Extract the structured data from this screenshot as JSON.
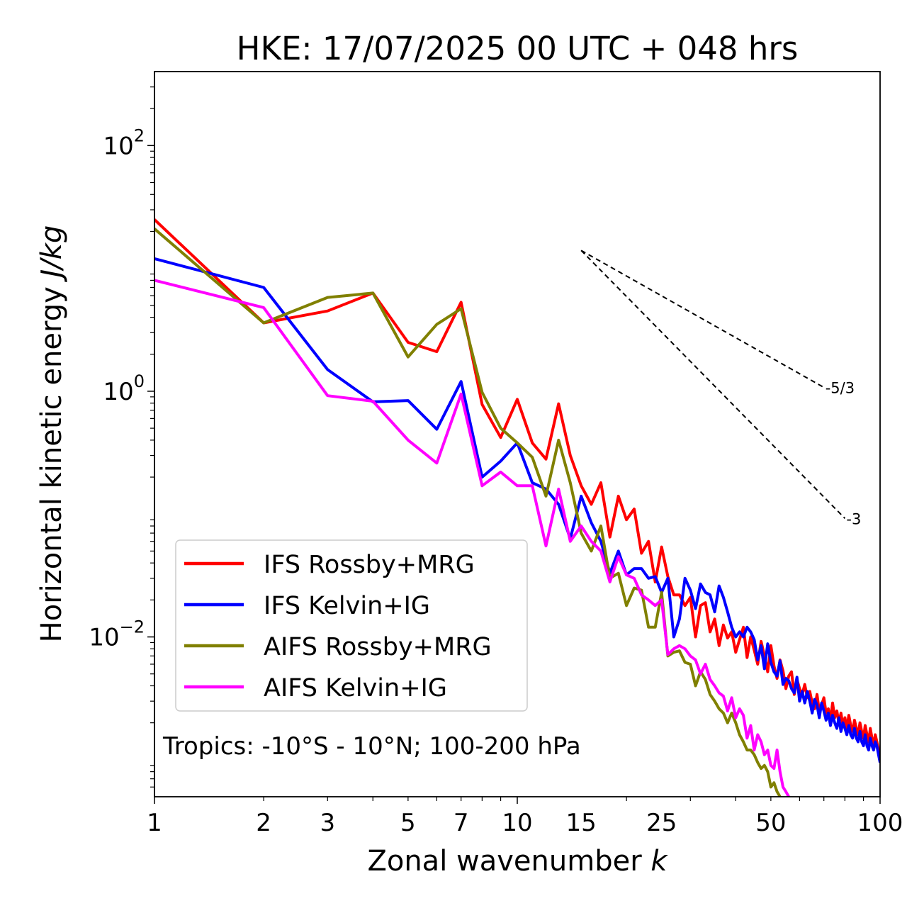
{
  "chart_data": {
    "type": "line",
    "title": "HKE: 17/07/2025 00 UTC + 048 hrs",
    "xlabel": "Zonal wavenumber ",
    "xlabel_italic": "k",
    "ylabel": "Horizontal kinetic energy ",
    "ylabel_italic": "J/kg",
    "xscale": "log",
    "yscale": "log",
    "xlim": [
      1,
      100
    ],
    "ylim": [
      0.0005,
      400
    ],
    "xticks": [
      1,
      2,
      3,
      5,
      7,
      10,
      15,
      25,
      50,
      100
    ],
    "xtick_labels": [
      "1",
      "2",
      "3",
      "5",
      "7",
      "10",
      "15",
      "25",
      "50",
      "100"
    ],
    "yticks": [
      0.01,
      1,
      100
    ],
    "ytick_labels": [
      {
        "base": "10",
        "exp": "−2"
      },
      {
        "base": "10",
        "exp": "0"
      },
      {
        "base": "10",
        "exp": "2"
      }
    ],
    "grid": false,
    "legend_position": "lower-left",
    "annotation": "Tropics: -10°S - 10°N; 100-200 hPa",
    "reference_lines": [
      {
        "label": "-5/3",
        "slope": -1.6667,
        "x_start": 15,
        "y_start": 14,
        "x_end": 70
      },
      {
        "label": "-3",
        "slope": -3,
        "x_start": 15,
        "y_start": 14,
        "x_end": 80
      }
    ],
    "series": [
      {
        "name": "IFS Rossby+MRG",
        "color": "#ff0000",
        "x": [
          1,
          2,
          3,
          4,
          5,
          6,
          7,
          8,
          9,
          10,
          11,
          12,
          13,
          14,
          15,
          16,
          17,
          18,
          19,
          20,
          21,
          22,
          23,
          24,
          25,
          26,
          27,
          28,
          29,
          30,
          31,
          32,
          33,
          34,
          35,
          36,
          37,
          38,
          39,
          40,
          41,
          42,
          43,
          44,
          45,
          46,
          47,
          48,
          49,
          50,
          51,
          52,
          53,
          54,
          55,
          56,
          57,
          58,
          59,
          60,
          61,
          62,
          63,
          64,
          65,
          66,
          67,
          68,
          69,
          70,
          71,
          72,
          73,
          74,
          75,
          76,
          77,
          78,
          79,
          80,
          81,
          82,
          83,
          84,
          85,
          86,
          87,
          88,
          89,
          90,
          91,
          92,
          93,
          94,
          95,
          96,
          97,
          98,
          99,
          100
        ],
        "y": [
          25,
          3.6,
          4.5,
          6.3,
          2.5,
          2.1,
          5.3,
          0.78,
          0.42,
          0.86,
          0.38,
          0.28,
          0.79,
          0.3,
          0.17,
          0.12,
          0.18,
          0.065,
          0.14,
          0.09,
          0.11,
          0.048,
          0.06,
          0.028,
          0.054,
          0.031,
          0.022,
          0.022,
          0.018,
          0.021,
          0.01,
          0.018,
          0.019,
          0.011,
          0.014,
          0.0085,
          0.0125,
          0.0098,
          0.011,
          0.0075,
          0.0095,
          0.012,
          0.0068,
          0.01,
          0.0078,
          0.006,
          0.0092,
          0.007,
          0.0052,
          0.0085,
          0.0058,
          0.0046,
          0.0065,
          0.0053,
          0.0038,
          0.0048,
          0.0052,
          0.0034,
          0.0045,
          0.0038,
          0.0034,
          0.0041,
          0.0032,
          0.0036,
          0.0029,
          0.0026,
          0.0034,
          0.0025,
          0.0028,
          0.0032,
          0.0024,
          0.0026,
          0.0021,
          0.0029,
          0.0022,
          0.0025,
          0.002,
          0.0024,
          0.0019,
          0.0022,
          0.0018,
          0.0023,
          0.0019,
          0.0017,
          0.0021,
          0.0018,
          0.0016,
          0.002,
          0.0017,
          0.0015,
          0.0019,
          0.0016,
          0.0014,
          0.0018,
          0.0015,
          0.0013,
          0.0016,
          0.0014,
          0.0012,
          0.0011
        ]
      },
      {
        "name": "IFS Kelvin+IG",
        "color": "#0000ff",
        "x": [
          1,
          2,
          3,
          4,
          5,
          6,
          7,
          8,
          9,
          10,
          11,
          12,
          13,
          14,
          15,
          16,
          17,
          18,
          19,
          20,
          21,
          22,
          23,
          24,
          25,
          26,
          27,
          28,
          29,
          30,
          31,
          32,
          33,
          34,
          35,
          36,
          37,
          38,
          39,
          40,
          41,
          42,
          43,
          44,
          45,
          46,
          47,
          48,
          49,
          50,
          51,
          52,
          53,
          54,
          55,
          56,
          57,
          58,
          59,
          60,
          61,
          62,
          63,
          64,
          65,
          66,
          67,
          68,
          69,
          70,
          71,
          72,
          73,
          74,
          75,
          76,
          77,
          78,
          79,
          80,
          81,
          82,
          83,
          84,
          85,
          86,
          87,
          88,
          89,
          90,
          91,
          92,
          93,
          94,
          95,
          96,
          97,
          98,
          99,
          100
        ],
        "y": [
          12,
          7,
          1.5,
          0.82,
          0.84,
          0.49,
          1.2,
          0.2,
          0.27,
          0.38,
          0.18,
          0.16,
          0.12,
          0.063,
          0.14,
          0.085,
          0.06,
          0.033,
          0.05,
          0.032,
          0.036,
          0.036,
          0.03,
          0.031,
          0.023,
          0.03,
          0.01,
          0.014,
          0.03,
          0.024,
          0.017,
          0.027,
          0.023,
          0.022,
          0.016,
          0.026,
          0.021,
          0.016,
          0.012,
          0.01,
          0.011,
          0.01,
          0.012,
          0.011,
          0.0095,
          0.0065,
          0.0085,
          0.0055,
          0.0088,
          0.0062,
          0.0052,
          0.0048,
          0.0064,
          0.0041,
          0.0046,
          0.0044,
          0.0038,
          0.0035,
          0.0047,
          0.003,
          0.0036,
          0.0029,
          0.0036,
          0.003,
          0.0024,
          0.0031,
          0.0028,
          0.0022,
          0.0029,
          0.0025,
          0.0021,
          0.0024,
          0.0019,
          0.0023,
          0.002,
          0.0018,
          0.0022,
          0.0017,
          0.002,
          0.0018,
          0.0016,
          0.0019,
          0.0016,
          0.0015,
          0.0018,
          0.0015,
          0.0014,
          0.0017,
          0.0014,
          0.0013,
          0.0016,
          0.0013,
          0.0012,
          0.0015,
          0.0013,
          0.0012,
          0.0014,
          0.0013,
          0.0011,
          0.00095
        ]
      },
      {
        "name": "AIFS Rossby+MRG",
        "color": "#808000",
        "x": [
          1,
          2,
          3,
          4,
          5,
          6,
          7,
          8,
          9,
          10,
          11,
          12,
          13,
          14,
          15,
          16,
          17,
          18,
          19,
          20,
          21,
          22,
          23,
          24,
          25,
          26,
          27,
          28,
          29,
          30,
          31,
          32,
          33,
          34,
          35,
          36,
          37,
          38,
          39,
          40,
          41,
          42,
          43,
          44,
          45,
          46,
          47,
          48,
          49,
          50,
          51,
          52,
          53,
          54,
          55,
          56,
          57,
          58,
          59,
          60
        ],
        "y": [
          21,
          3.6,
          5.8,
          6.3,
          1.9,
          3.5,
          4.7,
          0.98,
          0.5,
          0.38,
          0.29,
          0.14,
          0.4,
          0.18,
          0.07,
          0.05,
          0.08,
          0.03,
          0.033,
          0.018,
          0.025,
          0.024,
          0.012,
          0.012,
          0.023,
          0.007,
          0.0075,
          0.0077,
          0.0062,
          0.006,
          0.004,
          0.0052,
          0.0045,
          0.0034,
          0.003,
          0.0026,
          0.0024,
          0.002,
          0.0024,
          0.002,
          0.0016,
          0.0014,
          0.0012,
          0.0012,
          0.0011,
          0.00095,
          0.00085,
          0.0009,
          0.0008,
          0.0006,
          0.00065,
          0.00055,
          0.0005,
          0.00045,
          0.00042,
          0.0004,
          0.00038,
          0.00035,
          0.00032,
          0.0003
        ]
      },
      {
        "name": "AIFS Kelvin+IG",
        "color": "#ff00ff",
        "x": [
          1,
          2,
          3,
          4,
          5,
          6,
          7,
          8,
          9,
          10,
          11,
          12,
          13,
          14,
          15,
          16,
          17,
          18,
          19,
          20,
          21,
          22,
          23,
          24,
          25,
          26,
          27,
          28,
          29,
          30,
          31,
          32,
          33,
          34,
          35,
          36,
          37,
          38,
          39,
          40,
          41,
          42,
          43,
          44,
          45,
          46,
          47,
          48,
          49,
          50,
          51,
          52,
          53,
          54,
          55,
          56,
          57,
          58,
          59,
          60
        ],
        "y": [
          8,
          4.8,
          0.92,
          0.83,
          0.4,
          0.26,
          0.95,
          0.17,
          0.22,
          0.17,
          0.17,
          0.055,
          0.16,
          0.06,
          0.08,
          0.06,
          0.05,
          0.028,
          0.045,
          0.032,
          0.03,
          0.022,
          0.02,
          0.018,
          0.02,
          0.0072,
          0.008,
          0.0085,
          0.008,
          0.007,
          0.0065,
          0.005,
          0.006,
          0.0045,
          0.004,
          0.0035,
          0.0033,
          0.0025,
          0.0032,
          0.0022,
          0.0026,
          0.0023,
          0.0015,
          0.0019,
          0.0012,
          0.0016,
          0.0014,
          0.0011,
          0.0012,
          0.0009,
          0.00085,
          0.0012,
          0.0008,
          0.0006,
          0.00055,
          0.0005,
          0.00045,
          0.0004,
          0.00038,
          0.00035
        ]
      }
    ]
  }
}
